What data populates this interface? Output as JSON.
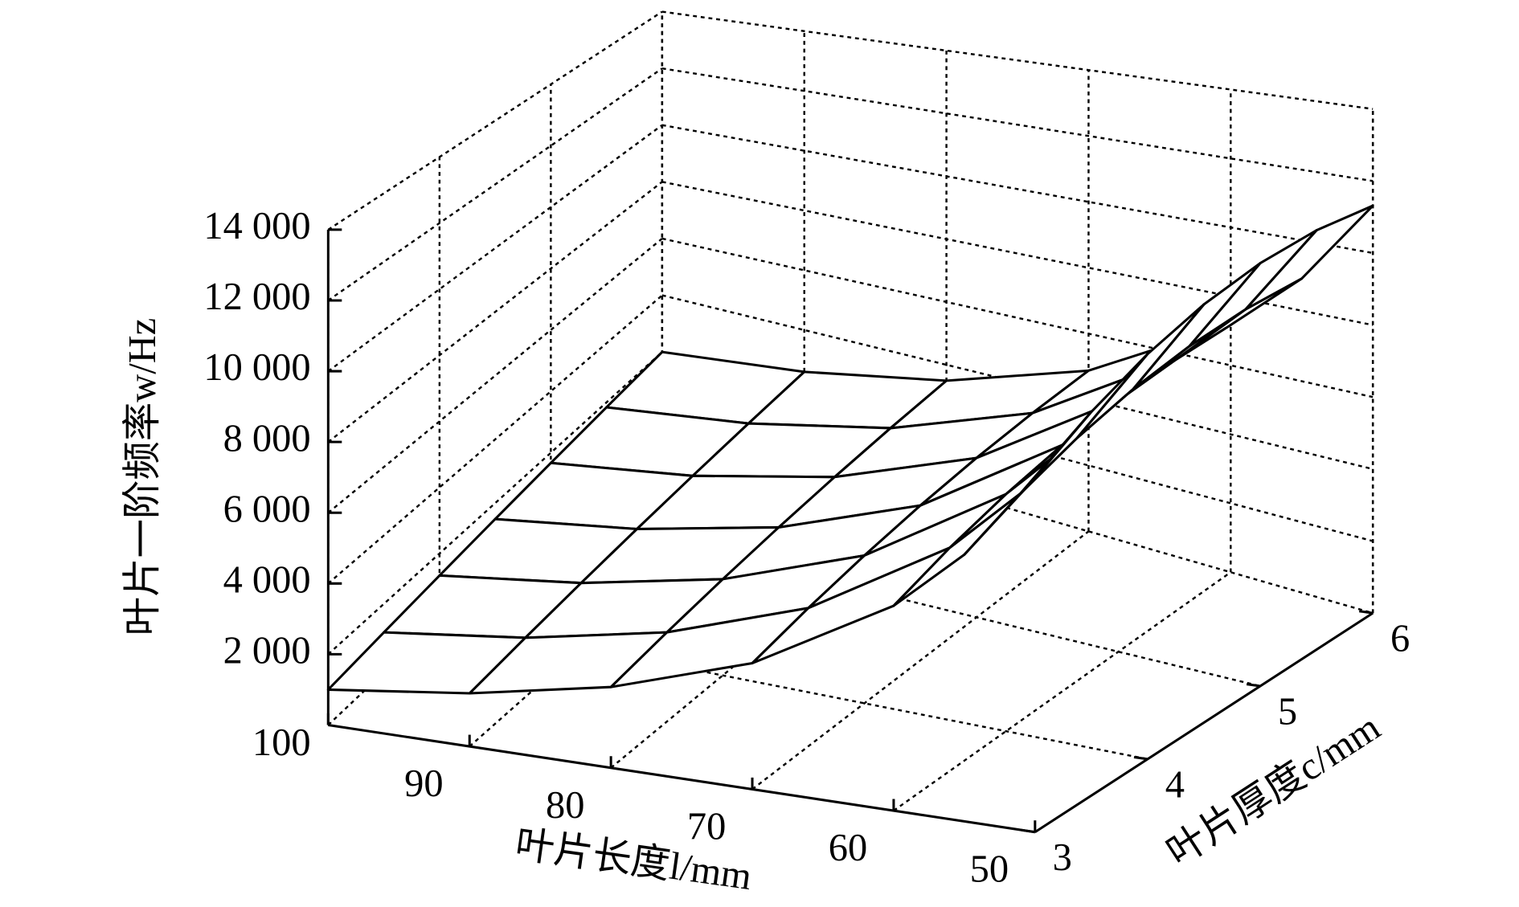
{
  "chart_data": {
    "type": "surface",
    "zlabel": "叶片一阶频率w/Hz",
    "xlabel": "叶片长度l/mm",
    "ylabel": "叶片厚度c/mm",
    "x": [
      100,
      90,
      80,
      70,
      60,
      55,
      50
    ],
    "y": [
      3,
      3.5,
      4,
      4.5,
      5,
      5.5,
      6
    ],
    "z": [
      [
        1000,
        1301,
        1747,
        2439,
        3586,
        4457,
        5657
      ],
      [
        1167,
        1518,
        2038,
        2846,
        4184,
        5200,
        6600
      ],
      [
        1333,
        1735,
        2329,
        3252,
        4781,
        5943,
        7543
      ],
      [
        1500,
        1952,
        2621,
        3659,
        5379,
        6686,
        8486
      ],
      [
        1667,
        2168,
        2912,
        4065,
        5977,
        7428,
        9428
      ],
      [
        1833,
        2385,
        3203,
        4471,
        6574,
        8171,
        10371
      ],
      [
        2000,
        2602,
        3494,
        4878,
        7172,
        8914,
        11314
      ]
    ],
    "xlim": [
      100,
      50
    ],
    "xticks": [
      100,
      90,
      80,
      70,
      60,
      50
    ],
    "ylim": [
      3,
      6
    ],
    "yticks": [
      3,
      4,
      5,
      6
    ],
    "zlim": [
      0,
      14000
    ],
    "zticks": [
      {
        "value": 2000,
        "label": "2 000"
      },
      {
        "value": 4000,
        "label": "4 000"
      },
      {
        "value": 6000,
        "label": "6 000"
      },
      {
        "value": 8000,
        "label": "8 000"
      },
      {
        "value": 10000,
        "label": "10 000"
      },
      {
        "value": 12000,
        "label": "12 000"
      },
      {
        "value": 14000,
        "label": "14 000"
      }
    ],
    "grid": true,
    "color": "#000000"
  }
}
